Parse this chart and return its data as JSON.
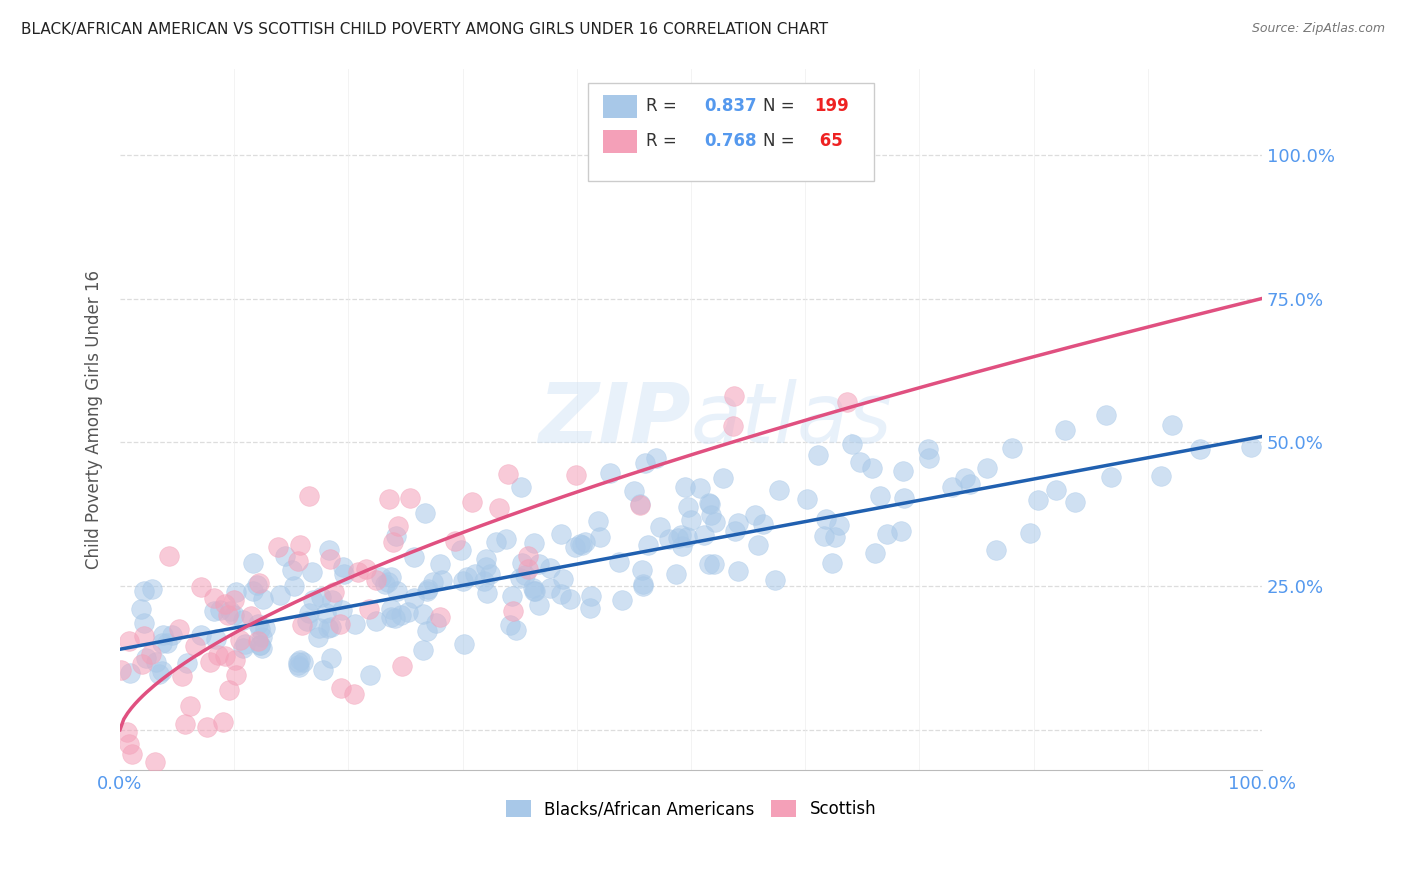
{
  "title": "BLACK/AFRICAN AMERICAN VS SCOTTISH CHILD POVERTY AMONG GIRLS UNDER 16 CORRELATION CHART",
  "source": "Source: ZipAtlas.com",
  "ylabel": "Child Poverty Among Girls Under 16",
  "watermark": "ZIPatlas",
  "blue_R": 0.837,
  "blue_N": 199,
  "pink_R": 0.768,
  "pink_N": 65,
  "blue_color": "#a8c8e8",
  "pink_color": "#f4a0b8",
  "blue_line_color": "#2060b0",
  "pink_line_color": "#e05080",
  "title_color": "#222222",
  "source_color": "#777777",
  "legend_label_blue": "Blacks/African Americans",
  "legend_label_pink": "Scottish",
  "axis_label_color": "#5599ee",
  "r_label_color": "#5599ee",
  "n_label_color": "#ee2222",
  "background_color": "#ffffff",
  "xlim": [
    0,
    1.0
  ],
  "ylim": [
    -0.07,
    1.15
  ],
  "blue_slope": 0.37,
  "blue_intercept": 0.14,
  "pink_power_a": 0.75,
  "pink_power_b": 0.65,
  "seed_blue": 42,
  "seed_pink": 7,
  "n_blue": 199,
  "n_pink": 65
}
